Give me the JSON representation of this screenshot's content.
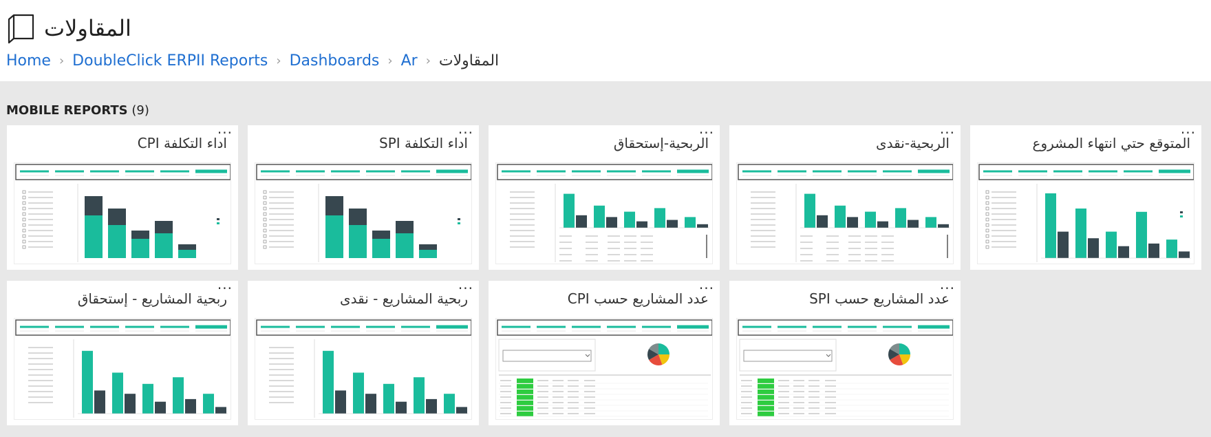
{
  "header": {
    "title": "المقاولات",
    "breadcrumb": [
      {
        "label": "Home"
      },
      {
        "label": "DoubleClick ERPII Reports"
      },
      {
        "label": "Dashboards"
      },
      {
        "label": "Ar"
      }
    ],
    "breadcrumb_current": "المقاولات"
  },
  "section": {
    "name": "MOBILE REPORTS",
    "count": "(9)"
  },
  "reports": [
    {
      "title": "المتوقع حتي انتهاء المشروع",
      "thumb": "bars-left-list"
    },
    {
      "title": "الربحية-نقدى",
      "thumb": "bars-table"
    },
    {
      "title": "الربحية-إستحقاق",
      "thumb": "bars-table"
    },
    {
      "title": "اداء التكلفة SPI",
      "thumb": "bars-stacked"
    },
    {
      "title": "اداء التكلفة CPI",
      "thumb": "bars-stacked"
    },
    {
      "title": "عدد المشاريع حسب SPI",
      "thumb": "pie-table"
    },
    {
      "title": "عدد المشاريع حسب CPI",
      "thumb": "pie-table"
    },
    {
      "title": "ربحية المشاريع - نقدى",
      "thumb": "bars-axis"
    },
    {
      "title": "ربحية المشاريع - إستحقاق",
      "thumb": "bars-axis"
    }
  ],
  "more_label": "···",
  "colors": {
    "teal": "#1abc9c",
    "dark": "#37474f",
    "link": "#1f6fd1",
    "bg": "#e8e8e8"
  }
}
